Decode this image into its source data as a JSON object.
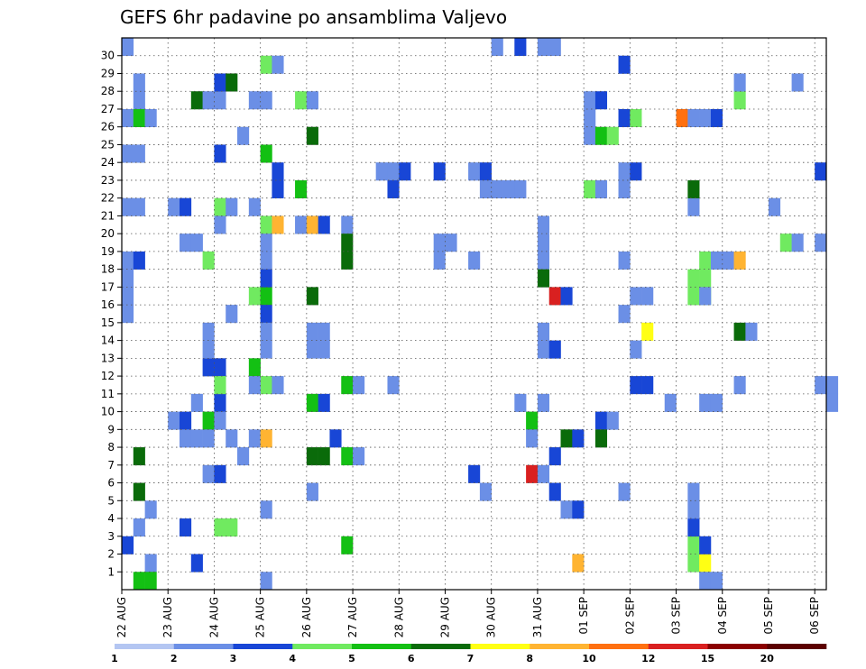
{
  "chart_data": {
    "type": "heatmap",
    "title": "GEFS 6hr padavine po ansamblima Valjevo",
    "xlabel": "",
    "ylabel": "",
    "x_ticks": [
      "22 AUG",
      "23 AUG",
      "24 AUG",
      "25 AUG",
      "26 AUG",
      "27 AUG",
      "28 AUG",
      "29 AUG",
      "30 AUG",
      "31 AUG",
      "01 SEP",
      "02 SEP",
      "03 SEP",
      "04 SEP",
      "05 SEP",
      "06 SEP"
    ],
    "y_ticks": [
      1,
      2,
      3,
      4,
      5,
      6,
      7,
      8,
      9,
      10,
      11,
      12,
      13,
      14,
      15,
      16,
      17,
      18,
      19,
      20,
      21,
      22,
      23,
      24,
      25,
      26,
      27,
      28,
      29,
      30
    ],
    "x_steps_6h": 61,
    "y_members": 31,
    "grid": true,
    "colorbar": {
      "labels": [
        "1",
        "2",
        "3",
        "4",
        "5",
        "6",
        "7",
        "8",
        "10",
        "12",
        "15",
        "20"
      ],
      "colors": [
        "#b4c6f2",
        "#6b8fe6",
        "#1846d6",
        "#70ea60",
        "#13c013",
        "#0a6b0a",
        "#ffff14",
        "#ffb432",
        "#ff7010",
        "#d92020",
        "#8b0000",
        "#5c0000"
      ]
    },
    "cells": [
      [
        0,
        30,
        1
      ],
      [
        1,
        28,
        1
      ],
      [
        1,
        27,
        1
      ],
      [
        0,
        26,
        1
      ],
      [
        1,
        26,
        4
      ],
      [
        2,
        26,
        1
      ],
      [
        0,
        24,
        1
      ],
      [
        1,
        24,
        1
      ],
      [
        0,
        21,
        1
      ],
      [
        1,
        21,
        1
      ],
      [
        0,
        18,
        1
      ],
      [
        1,
        18,
        2
      ],
      [
        0,
        17,
        1
      ],
      [
        0,
        16,
        1
      ],
      [
        0,
        15,
        1
      ],
      [
        0,
        2,
        2
      ],
      [
        1,
        3,
        1
      ],
      [
        2,
        4,
        1
      ],
      [
        1,
        5,
        5
      ],
      [
        1,
        7,
        5
      ],
      [
        2,
        1,
        1
      ],
      [
        1,
        0,
        4
      ],
      [
        2,
        0,
        4
      ],
      [
        4,
        9,
        1
      ],
      [
        5,
        9,
        2
      ],
      [
        5,
        3,
        2
      ],
      [
        5,
        8,
        1
      ],
      [
        6,
        8,
        1
      ],
      [
        6,
        10,
        1
      ],
      [
        4,
        21,
        1
      ],
      [
        5,
        21,
        2
      ],
      [
        5,
        19,
        1
      ],
      [
        6,
        19,
        1
      ],
      [
        6,
        27,
        5
      ],
      [
        6,
        1,
        2
      ],
      [
        7,
        27,
        1
      ],
      [
        8,
        27,
        1
      ],
      [
        7,
        6,
        1
      ],
      [
        8,
        6,
        2
      ],
      [
        7,
        9,
        4
      ],
      [
        8,
        10,
        2
      ],
      [
        7,
        8,
        1
      ],
      [
        8,
        9,
        1
      ],
      [
        8,
        28,
        2
      ],
      [
        9,
        28,
        5
      ],
      [
        8,
        24,
        2
      ],
      [
        7,
        18,
        3
      ],
      [
        8,
        21,
        3
      ],
      [
        8,
        20,
        1
      ],
      [
        7,
        12,
        2
      ],
      [
        7,
        13,
        1
      ],
      [
        7,
        14,
        1
      ],
      [
        8,
        12,
        2
      ],
      [
        8,
        11,
        3
      ],
      [
        8,
        3,
        3
      ],
      [
        9,
        3,
        3
      ],
      [
        9,
        15,
        1
      ],
      [
        9,
        21,
        1
      ],
      [
        9,
        8,
        1
      ],
      [
        10,
        7,
        1
      ],
      [
        11,
        8,
        1
      ],
      [
        10,
        25,
        1
      ],
      [
        11,
        27,
        1
      ],
      [
        12,
        29,
        3
      ],
      [
        12,
        20,
        3
      ],
      [
        13,
        20,
        7
      ],
      [
        11,
        16,
        3
      ],
      [
        12,
        16,
        4
      ],
      [
        12,
        15,
        2
      ],
      [
        12,
        14,
        1
      ],
      [
        12,
        13,
        1
      ],
      [
        12,
        11,
        3
      ],
      [
        13,
        11,
        1
      ],
      [
        12,
        4,
        1
      ],
      [
        12,
        0,
        1
      ],
      [
        12,
        19,
        1
      ],
      [
        12,
        18,
        1
      ],
      [
        12,
        17,
        2
      ],
      [
        11,
        12,
        4
      ],
      [
        11,
        11,
        1
      ],
      [
        12,
        8,
        7
      ],
      [
        11,
        21,
        1
      ],
      [
        13,
        22,
        2
      ],
      [
        13,
        23,
        2
      ],
      [
        13,
        29,
        1
      ],
      [
        12,
        24,
        4
      ],
      [
        12,
        27,
        1
      ],
      [
        15,
        27,
        3
      ],
      [
        16,
        27,
        1
      ],
      [
        16,
        25,
        5
      ],
      [
        15,
        20,
        1
      ],
      [
        16,
        20,
        7
      ],
      [
        17,
        20,
        2
      ],
      [
        16,
        16,
        5
      ],
      [
        16,
        14,
        1
      ],
      [
        17,
        14,
        1
      ],
      [
        16,
        13,
        1
      ],
      [
        17,
        13,
        1
      ],
      [
        16,
        10,
        4
      ],
      [
        17,
        10,
        2
      ],
      [
        16,
        7,
        5
      ],
      [
        17,
        7,
        5
      ],
      [
        16,
        5,
        1
      ],
      [
        15,
        22,
        4
      ],
      [
        19,
        20,
        1
      ],
      [
        19,
        19,
        5
      ],
      [
        19,
        18,
        5
      ],
      [
        19,
        11,
        4
      ],
      [
        20,
        11,
        1
      ],
      [
        19,
        7,
        4
      ],
      [
        20,
        7,
        1
      ],
      [
        19,
        2,
        4
      ],
      [
        18,
        8,
        2
      ],
      [
        22,
        23,
        1
      ],
      [
        23,
        23,
        1
      ],
      [
        24,
        23,
        2
      ],
      [
        23,
        22,
        2
      ],
      [
        23,
        11,
        1
      ],
      [
        27,
        23,
        2
      ],
      [
        27,
        19,
        1
      ],
      [
        28,
        19,
        1
      ],
      [
        27,
        18,
        1
      ],
      [
        30,
        23,
        1
      ],
      [
        31,
        23,
        2
      ],
      [
        30,
        18,
        1
      ],
      [
        32,
        22,
        1
      ],
      [
        31,
        22,
        1
      ],
      [
        31,
        5,
        1
      ],
      [
        30,
        6,
        2
      ],
      [
        32,
        30,
        1
      ],
      [
        34,
        30,
        2
      ],
      [
        36,
        30,
        1
      ],
      [
        37,
        30,
        1
      ],
      [
        33,
        22,
        1
      ],
      [
        34,
        22,
        1
      ],
      [
        36,
        20,
        1
      ],
      [
        36,
        19,
        1
      ],
      [
        36,
        18,
        1
      ],
      [
        34,
        10,
        1
      ],
      [
        36,
        10,
        1
      ],
      [
        36,
        13,
        1
      ],
      [
        37,
        13,
        2
      ],
      [
        36,
        14,
        1
      ],
      [
        35,
        9,
        4
      ],
      [
        35,
        8,
        1
      ],
      [
        35,
        6,
        9
      ],
      [
        36,
        6,
        1
      ],
      [
        36,
        17,
        5
      ],
      [
        37,
        16,
        9
      ],
      [
        38,
        16,
        2
      ],
      [
        37,
        5,
        2
      ],
      [
        38,
        8,
        5
      ],
      [
        37,
        7,
        2
      ],
      [
        38,
        4,
        1
      ],
      [
        39,
        4,
        2
      ],
      [
        39,
        1,
        7
      ],
      [
        40,
        22,
        3
      ],
      [
        41,
        22,
        1
      ],
      [
        40,
        26,
        1
      ],
      [
        40,
        27,
        1
      ],
      [
        41,
        27,
        2
      ],
      [
        40,
        25,
        1
      ],
      [
        41,
        25,
        4
      ],
      [
        42,
        25,
        3
      ],
      [
        41,
        9,
        2
      ],
      [
        42,
        9,
        1
      ],
      [
        41,
        8,
        5
      ],
      [
        39,
        8,
        2
      ],
      [
        43,
        22,
        1
      ],
      [
        43,
        23,
        1
      ],
      [
        44,
        23,
        2
      ],
      [
        43,
        26,
        2
      ],
      [
        44,
        26,
        3
      ],
      [
        43,
        29,
        2
      ],
      [
        43,
        18,
        1
      ],
      [
        43,
        15,
        1
      ],
      [
        44,
        16,
        1
      ],
      [
        45,
        16,
        1
      ],
      [
        44,
        13,
        1
      ],
      [
        45,
        14,
        6
      ],
      [
        44,
        11,
        2
      ],
      [
        45,
        11,
        2
      ],
      [
        43,
        5,
        1
      ],
      [
        47,
        10,
        1
      ],
      [
        48,
        26,
        8
      ],
      [
        49,
        26,
        1
      ],
      [
        50,
        26,
        1
      ],
      [
        51,
        26,
        2
      ],
      [
        49,
        21,
        1
      ],
      [
        49,
        22,
        5
      ],
      [
        49,
        1,
        3
      ],
      [
        50,
        1,
        6
      ],
      [
        49,
        2,
        3
      ],
      [
        50,
        2,
        2
      ],
      [
        49,
        3,
        2
      ],
      [
        49,
        4,
        1
      ],
      [
        49,
        5,
        1
      ],
      [
        49,
        16,
        3
      ],
      [
        50,
        16,
        3
      ],
      [
        49,
        17,
        3
      ],
      [
        50,
        17,
        3
      ],
      [
        50,
        18,
        3
      ],
      [
        50,
        16,
        1
      ],
      [
        50,
        0,
        1
      ],
      [
        51,
        0,
        1
      ],
      [
        50,
        10,
        1
      ],
      [
        51,
        10,
        1
      ],
      [
        51,
        18,
        1
      ],
      [
        52,
        18,
        1
      ],
      [
        53,
        18,
        7
      ],
      [
        53,
        14,
        5
      ],
      [
        54,
        14,
        1
      ],
      [
        53,
        27,
        3
      ],
      [
        53,
        11,
        1
      ],
      [
        53,
        28,
        1
      ],
      [
        56,
        21,
        1
      ],
      [
        57,
        19,
        3
      ],
      [
        58,
        19,
        1
      ],
      [
        60,
        19,
        1
      ],
      [
        58,
        28,
        1
      ],
      [
        60,
        23,
        2
      ],
      [
        60,
        11,
        1
      ],
      [
        61,
        11,
        1
      ],
      [
        61,
        10,
        1
      ]
    ]
  }
}
